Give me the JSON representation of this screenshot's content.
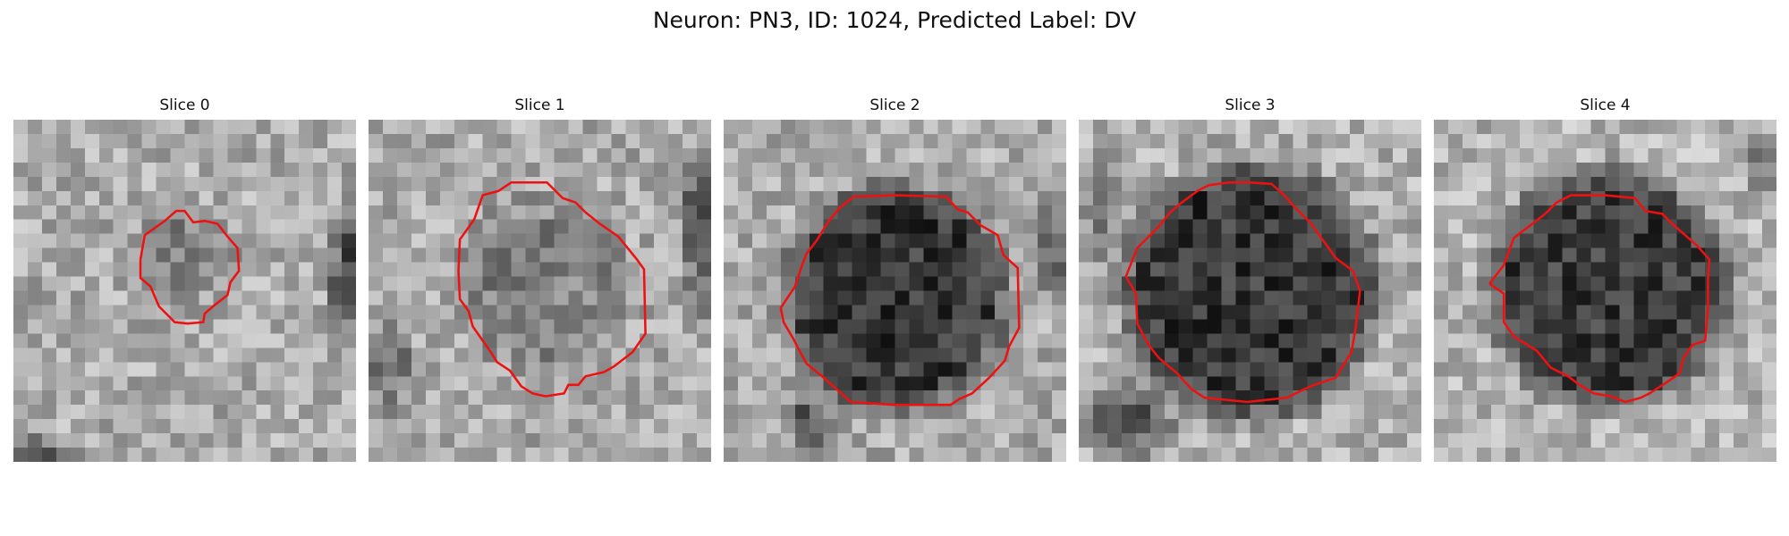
{
  "figure": {
    "title": "Neuron: PN3, ID: 1024, Predicted Label: DV"
  },
  "colors": {
    "contour": "#ee1111",
    "background": "#ffffff"
  },
  "panels": [
    {
      "title": "Slice 0",
      "base": 172,
      "amp": 40,
      "blob": {
        "cx": 11.8,
        "cy": 9.5,
        "r": 2.8,
        "depth": 45
      },
      "dark": [
        {
          "cx": 23.5,
          "cy": 10.5,
          "rx": 1.3,
          "ry": 5.0,
          "depth": 95
        },
        {
          "cx": 1.5,
          "cy": 24.0,
          "rx": 2.5,
          "ry": 2.0,
          "depth": 85
        }
      ],
      "contour": [
        [
          8.9,
          9.8
        ],
        [
          9.2,
          8.1
        ],
        [
          10.6,
          7.1
        ],
        [
          11.4,
          6.4
        ],
        [
          12.0,
          6.4
        ],
        [
          12.6,
          7.2
        ],
        [
          13.4,
          7.1
        ],
        [
          14.3,
          7.3
        ],
        [
          15.0,
          8.2
        ],
        [
          15.7,
          9.0
        ],
        [
          15.8,
          10.6
        ],
        [
          15.2,
          11.4
        ],
        [
          15.0,
          12.3
        ],
        [
          14.1,
          13.0
        ],
        [
          13.4,
          13.6
        ],
        [
          13.3,
          14.2
        ],
        [
          12.2,
          14.3
        ],
        [
          11.3,
          14.2
        ],
        [
          10.2,
          13.1
        ],
        [
          9.6,
          11.7
        ],
        [
          8.9,
          11.1
        ]
      ]
    },
    {
      "title": "Slice 1",
      "base": 170,
      "amp": 40,
      "blob": {
        "cx": 12.0,
        "cy": 11.5,
        "r": 5.5,
        "depth": 40
      },
      "dark": [
        {
          "cx": 23.5,
          "cy": 7.5,
          "rx": 1.3,
          "ry": 6.0,
          "depth": 100
        },
        {
          "cx": 1.5,
          "cy": 17.0,
          "rx": 1.5,
          "ry": 4.0,
          "depth": 55
        }
      ],
      "contour": [
        [
          6.3,
          10.6
        ],
        [
          6.4,
          8.4
        ],
        [
          7.4,
          7.0
        ],
        [
          8.0,
          5.3
        ],
        [
          9.1,
          5.0
        ],
        [
          10.0,
          4.4
        ],
        [
          12.5,
          4.4
        ],
        [
          13.6,
          5.5
        ],
        [
          14.5,
          5.8
        ],
        [
          15.2,
          6.5
        ],
        [
          16.2,
          7.3
        ],
        [
          17.5,
          8.2
        ],
        [
          18.8,
          9.8
        ],
        [
          19.3,
          10.5
        ],
        [
          19.4,
          15.0
        ],
        [
          18.5,
          16.3
        ],
        [
          17.2,
          17.3
        ],
        [
          16.5,
          17.7
        ],
        [
          15.2,
          18.0
        ],
        [
          14.7,
          18.6
        ],
        [
          14.0,
          18.6
        ],
        [
          13.7,
          19.2
        ],
        [
          12.4,
          19.4
        ],
        [
          11.5,
          19.2
        ],
        [
          10.7,
          18.7
        ],
        [
          9.9,
          17.6
        ],
        [
          9.0,
          17.0
        ],
        [
          8.5,
          16.2
        ],
        [
          8.0,
          15.5
        ],
        [
          7.3,
          14.5
        ],
        [
          7.0,
          13.4
        ],
        [
          6.4,
          12.6
        ]
      ]
    },
    {
      "title": "Slice 2",
      "base": 170,
      "amp": 40,
      "blob": {
        "cx": 12.0,
        "cy": 12.5,
        "r": 7.5,
        "depth": 115
      },
      "dark": [
        {
          "cx": 23.5,
          "cy": 9.5,
          "rx": 1.3,
          "ry": 4.5,
          "depth": 70
        },
        {
          "cx": 6.0,
          "cy": 21.0,
          "rx": 1.5,
          "ry": 2.0,
          "depth": 80
        }
      ],
      "contour": [
        [
          4.0,
          13.2
        ],
        [
          5.0,
          11.7
        ],
        [
          5.5,
          10.2
        ],
        [
          5.8,
          9.4
        ],
        [
          6.5,
          8.5
        ],
        [
          7.3,
          7.2
        ],
        [
          8.1,
          6.2
        ],
        [
          9.1,
          5.4
        ],
        [
          12.0,
          5.3
        ],
        [
          15.6,
          5.4
        ],
        [
          16.4,
          6.3
        ],
        [
          17.1,
          6.5
        ],
        [
          18.0,
          7.4
        ],
        [
          19.2,
          8.1
        ],
        [
          19.6,
          9.5
        ],
        [
          20.6,
          10.4
        ],
        [
          20.7,
          14.6
        ],
        [
          20.0,
          15.9
        ],
        [
          19.7,
          16.9
        ],
        [
          18.6,
          18.1
        ],
        [
          17.4,
          19.2
        ],
        [
          16.5,
          19.6
        ],
        [
          15.9,
          20.0
        ],
        [
          12.0,
          20.0
        ],
        [
          8.9,
          19.8
        ],
        [
          7.8,
          18.8
        ],
        [
          6.9,
          18.0
        ],
        [
          5.8,
          17.1
        ],
        [
          5.2,
          16.0
        ],
        [
          4.9,
          15.4
        ],
        [
          4.2,
          14.2
        ]
      ]
    },
    {
      "title": "Slice 3",
      "base": 175,
      "amp": 40,
      "blob": {
        "cx": 12.0,
        "cy": 12.0,
        "r": 8.5,
        "depth": 120
      },
      "dark": [
        {
          "cx": 1.5,
          "cy": 6.0,
          "rx": 1.5,
          "ry": 4.0,
          "depth": 55
        },
        {
          "cx": 3.0,
          "cy": 21.0,
          "rx": 3.5,
          "ry": 2.5,
          "depth": 90
        }
      ],
      "contour": [
        [
          3.3,
          11.0
        ],
        [
          4.1,
          9.0
        ],
        [
          5.6,
          7.5
        ],
        [
          6.4,
          6.5
        ],
        [
          7.1,
          5.9
        ],
        [
          8.3,
          5.0
        ],
        [
          9.1,
          4.6
        ],
        [
          10.5,
          4.4
        ],
        [
          12.0,
          4.4
        ],
        [
          13.5,
          4.5
        ],
        [
          14.4,
          5.3
        ],
        [
          15.0,
          6.0
        ],
        [
          16.2,
          7.2
        ],
        [
          17.0,
          8.3
        ],
        [
          18.0,
          9.7
        ],
        [
          19.2,
          10.6
        ],
        [
          19.7,
          12.0
        ],
        [
          19.4,
          14.6
        ],
        [
          19.1,
          16.3
        ],
        [
          18.0,
          18.1
        ],
        [
          16.5,
          18.6
        ],
        [
          15.6,
          19.0
        ],
        [
          14.6,
          19.5
        ],
        [
          11.8,
          19.8
        ],
        [
          8.8,
          19.5
        ],
        [
          7.9,
          18.9
        ],
        [
          6.9,
          17.8
        ],
        [
          5.6,
          16.7
        ],
        [
          4.9,
          15.8
        ],
        [
          4.1,
          14.3
        ],
        [
          4.0,
          12.2
        ]
      ]
    },
    {
      "title": "Slice 4",
      "base": 180,
      "amp": 40,
      "blob": {
        "cx": 12.2,
        "cy": 11.8,
        "r": 8.0,
        "depth": 120
      },
      "dark": [
        {
          "cx": 23.0,
          "cy": 3.0,
          "rx": 1.5,
          "ry": 2.5,
          "depth": 55
        }
      ],
      "contour": [
        [
          3.9,
          11.5
        ],
        [
          4.9,
          10.2
        ],
        [
          5.6,
          8.3
        ],
        [
          6.9,
          7.3
        ],
        [
          7.8,
          6.6
        ],
        [
          8.6,
          5.8
        ],
        [
          9.6,
          5.3
        ],
        [
          12.0,
          5.3
        ],
        [
          14.1,
          5.5
        ],
        [
          14.8,
          6.4
        ],
        [
          16.0,
          6.6
        ],
        [
          16.7,
          7.3
        ],
        [
          18.4,
          8.8
        ],
        [
          19.3,
          9.8
        ],
        [
          19.2,
          11.2
        ],
        [
          19.2,
          13.2
        ],
        [
          19.0,
          15.5
        ],
        [
          18.1,
          15.8
        ],
        [
          17.5,
          16.7
        ],
        [
          17.2,
          17.8
        ],
        [
          16.2,
          18.5
        ],
        [
          15.1,
          19.2
        ],
        [
          14.5,
          19.5
        ],
        [
          13.4,
          19.8
        ],
        [
          12.4,
          19.4
        ],
        [
          11.2,
          19.2
        ],
        [
          10.2,
          18.6
        ],
        [
          9.4,
          18.0
        ],
        [
          8.2,
          17.4
        ],
        [
          7.2,
          16.2
        ],
        [
          5.6,
          15.2
        ],
        [
          4.9,
          14.2
        ],
        [
          4.9,
          12.2
        ]
      ]
    }
  ]
}
